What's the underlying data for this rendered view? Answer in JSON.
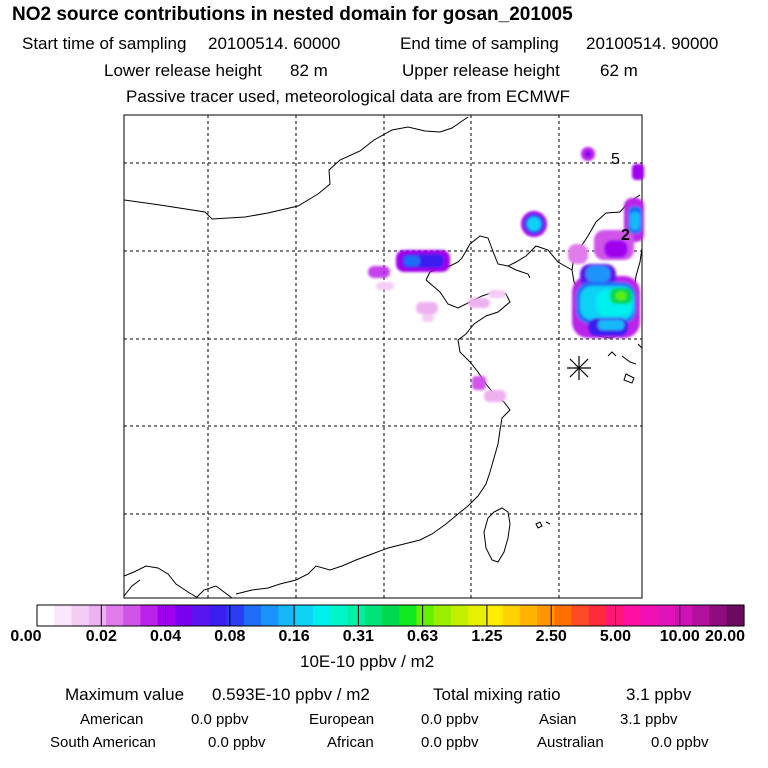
{
  "title": "NO2 source contributions in nested domain for gosan_201005",
  "header": {
    "start_label": "Start time of sampling",
    "start_value": "20100514. 60000",
    "end_label": "End time of sampling",
    "end_value": "20100514. 90000",
    "lower_label": "Lower release height",
    "lower_value": "82 m",
    "upper_label": "Upper release height",
    "upper_value": "62 m",
    "note": "Passive tracer used, meteorological data are from ECMWF"
  },
  "map": {
    "contour_labels": [
      "5",
      "2"
    ],
    "receptor_marker": "asterisk-icon"
  },
  "colorbar": {
    "ticks": [
      "0.00",
      "0.02",
      "0.04",
      "0.08",
      "0.16",
      "0.31",
      "0.63",
      "1.25",
      "2.50",
      "5.00",
      "10.00",
      "20.00"
    ],
    "colors": [
      "#ffffff",
      "#fbe6fb",
      "#f5ccf6",
      "#eeb1f0",
      "#e07cec",
      "#d053ea",
      "#bb22ea",
      "#a000ee",
      "#7a00f0",
      "#5a14ee",
      "#3b1ff0",
      "#2a3cf4",
      "#1e6ef8",
      "#1a94fa",
      "#17b8f8",
      "#10d2f4",
      "#00f0f0",
      "#00f6c8",
      "#00f0a8",
      "#00e27a",
      "#00d850",
      "#10e820",
      "#60f000",
      "#9af000",
      "#c4f000",
      "#e6f000",
      "#ffec00",
      "#ffd200",
      "#ffb400",
      "#ff9600",
      "#ff7000",
      "#ff4a26",
      "#ff2a3c",
      "#ff1678",
      "#ff10a0",
      "#f010b4",
      "#e012ba",
      "#cc14b4",
      "#b0109c",
      "#8e0c7e",
      "#6c0a60"
    ],
    "unit": "10E-10 ppbv / m2"
  },
  "summary": {
    "max_label": "Maximum value",
    "max_value": "0.593E-10 ppbv / m2",
    "total_label": "Total mixing ratio",
    "total_value": "3.1 ppbv",
    "regions": [
      {
        "name": "American",
        "value": "0.0 ppbv"
      },
      {
        "name": "European",
        "value": "0.0 ppbv"
      },
      {
        "name": "Asian",
        "value": "3.1 ppbv"
      },
      {
        "name": "South American",
        "value": "0.0 ppbv"
      },
      {
        "name": "African",
        "value": "0.0 ppbv"
      },
      {
        "name": "Australian",
        "value": "0.0 ppbv"
      }
    ]
  }
}
